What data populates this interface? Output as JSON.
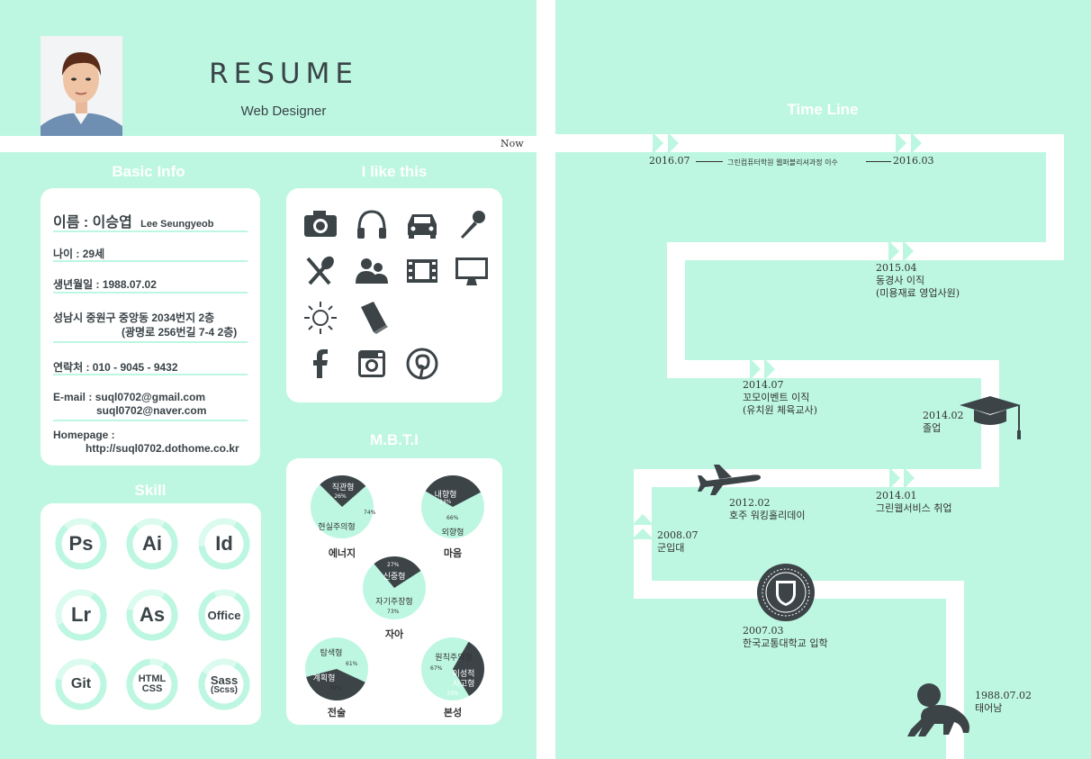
{
  "header": {
    "title": "RESUME",
    "subtitle": "Web Designer",
    "now_label": "Now"
  },
  "basic_info": {
    "section_title": "Basic Info",
    "name_label": "이름 : 이승엽",
    "name_en": "Lee Seungyeob",
    "age": "나이 : 29세",
    "birth": "생년월일 : 1988.07.02",
    "address_line1": "성남시 중원구 중앙동 2034번지 2층",
    "address_line2": "(광명로 256번길 7-4 2층)",
    "phone": "연락처 : 010 - 9045 - 9432",
    "email_label": "E-mail :",
    "email1": "suql0702@gmail.com",
    "email2": "suql0702@naver.com",
    "homepage_label": "Homepage :",
    "homepage": "http://suql0702.dothome.co.kr"
  },
  "likes": {
    "section_title": "I like this",
    "icons": [
      "camera-icon",
      "headphones-icon",
      "car-icon",
      "microphone-icon",
      "cutlery-icon",
      "people-icon",
      "film-icon",
      "monitor-icon",
      "sun-icon",
      "book-icon",
      "facebook-icon",
      "instagram-icon",
      "pinterest-icon"
    ]
  },
  "skills": {
    "section_title": "Skill",
    "items": [
      {
        "label": "Ps",
        "percent": 80
      },
      {
        "label": "Ai",
        "percent": 80
      },
      {
        "label": "Id",
        "percent": 65
      },
      {
        "label": "Lr",
        "percent": 60
      },
      {
        "label": "As",
        "percent": 70
      },
      {
        "label": "Office",
        "percent": 85
      },
      {
        "label": "Git",
        "percent": 70
      },
      {
        "label": "HTML",
        "label2": "CSS",
        "percent": 90
      },
      {
        "label": "Sass",
        "label2": "(Scss)",
        "percent": 75
      }
    ]
  },
  "mbti": {
    "section_title": "M.B.T.I",
    "items": [
      {
        "name": "에너지",
        "dark_label": "직관형",
        "dark_pct": "26%",
        "light_label": "현실주의형",
        "light_pct": "74%",
        "dark_percent": 26
      },
      {
        "name": "마음",
        "dark_label": "내향형",
        "dark_pct": "34%",
        "light_label": "외향형",
        "light_pct": "66%",
        "dark_percent": 34
      },
      {
        "name": "자아",
        "dark_label": "신중형",
        "dark_pct": "27%",
        "light_label": "자기주장형",
        "light_pct": "73%",
        "dark_percent": 27
      },
      {
        "name": "전술",
        "dark_label": "계획형",
        "dark_pct": "39%",
        "light_label": "탐색형",
        "light_pct": "61%",
        "dark_percent": 39
      },
      {
        "name": "본성",
        "dark_label": "이성적 사고형",
        "dark_pct": "33%",
        "light_label": "원칙주의형",
        "light_pct": "67%",
        "dark_percent": 33
      }
    ]
  },
  "timeline": {
    "section_title": "Time Line",
    "events": [
      {
        "date": "2016.07",
        "text": ""
      },
      {
        "date": "",
        "text": "그린컴퓨터학원 웹퍼블리셔과정 이수"
      },
      {
        "date": "2016.03",
        "text": ""
      },
      {
        "date": "2015.04",
        "text": "동경사 이직",
        "text2": "(미용재료 영업사원)"
      },
      {
        "date": "2014.07",
        "text": "꼬모이벤트 이직",
        "text2": "(유치원 체육교사)"
      },
      {
        "date": "2014.02",
        "text": "졸업"
      },
      {
        "date": "2012.02",
        "text": "호주 워킹홀리데이"
      },
      {
        "date": "2014.01",
        "text": "그린웹서비스 취업"
      },
      {
        "date": "2008.07",
        "text": "군입대"
      },
      {
        "date": "2007.03",
        "text": "한국교통대학교 입학"
      },
      {
        "date": "1988.07.02",
        "text": "태어남"
      }
    ]
  }
}
